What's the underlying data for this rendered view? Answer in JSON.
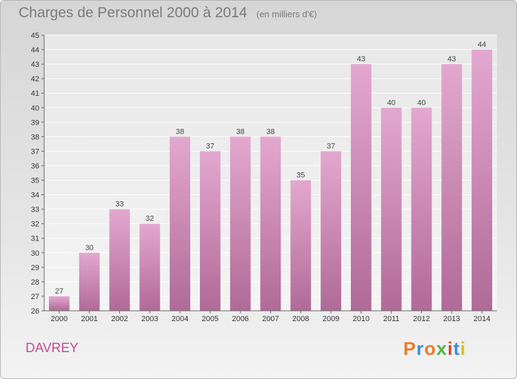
{
  "header": {
    "title": "Charges de Personnel 2000 à 2014",
    "subtitle": "(en milliers d'€)"
  },
  "footer": {
    "commune": "DAVREY",
    "logo_text": "Proxiti"
  },
  "colors": {
    "bar_top": "#e3a8cf",
    "bar_bottom": "#b06a97",
    "commune_text": "#c24a93",
    "logo_letters": [
      "#e87d2a",
      "#3d8fd1",
      "#e87d2a",
      "#4fb34a",
      "#d9482c",
      "#3d8fd1",
      "#e6b82a"
    ]
  },
  "chart_data": {
    "type": "bar",
    "categories": [
      "2000",
      "2001",
      "2002",
      "2003",
      "2004",
      "2005",
      "2006",
      "2007",
      "2008",
      "2009",
      "2010",
      "2011",
      "2012",
      "2013",
      "2014"
    ],
    "values": [
      27,
      30,
      33,
      32,
      38,
      37,
      38,
      38,
      35,
      37,
      43,
      40,
      40,
      43,
      44
    ],
    "ylim": [
      26,
      45
    ],
    "yticks": [
      26,
      27,
      28,
      29,
      30,
      31,
      32,
      33,
      34,
      35,
      36,
      37,
      38,
      39,
      40,
      41,
      42,
      43,
      44,
      45
    ],
    "grid": true,
    "data_labels": true
  }
}
